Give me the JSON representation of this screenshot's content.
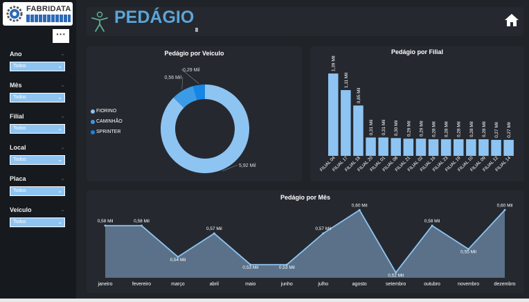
{
  "logo": {
    "text": "FABRIDATA"
  },
  "header": {
    "title": "PEDÁGIO"
  },
  "menu": {
    "more_label": "···"
  },
  "filters": [
    {
      "label": "Ano",
      "value": "Todos"
    },
    {
      "label": "Mês",
      "value": "Todos"
    },
    {
      "label": "Filial",
      "value": "Todos"
    },
    {
      "label": "Local",
      "value": "Todos"
    },
    {
      "label": "Placa",
      "value": "Todos"
    },
    {
      "label": "Veículo",
      "value": "Todos"
    }
  ],
  "colors": {
    "accent": "#5ba5d8",
    "light_blue": "#8ec4f2",
    "mid_blue": "#3b9be6",
    "dark_blue": "#1586e6",
    "card": "#25292f",
    "bg": "#202429"
  },
  "chart_data": [
    {
      "type": "pie",
      "title": "Pedágio por Veículo",
      "categories": [
        "FIORINO",
        "CAMINHÃO",
        "SPRINTER"
      ],
      "values": [
        5.92,
        0.56,
        0.29
      ],
      "data_labels": [
        "5,92 Mil",
        "0,56 Mil",
        "0,29 Mil"
      ],
      "colors": [
        "#8ec4f2",
        "#3b9be6",
        "#1586e6"
      ],
      "legend": "left"
    },
    {
      "type": "bar",
      "title": "Pedágio por Filial",
      "categories": [
        "FILIAL 04",
        "FILIAL 17",
        "FILIAL 18",
        "FILIAL 20",
        "FILIAL 01",
        "FILIAL 08",
        "FILIAL 21",
        "FILIAL 02",
        "FILIAL 16",
        "FILIAL 23",
        "FILIAL 19",
        "FILIAL 10",
        "FILIAL 09",
        "FILIAL 12",
        "FILIAL 14"
      ],
      "values": [
        1.39,
        1.11,
        0.85,
        0.31,
        0.31,
        0.3,
        0.29,
        0.29,
        0.28,
        0.28,
        0.28,
        0.28,
        0.28,
        0.27,
        0.27
      ],
      "data_labels": [
        "1,39 Mil",
        "1,11 Mil",
        "0,85 Mil",
        "0,31 Mil",
        "0,31 Mil",
        "0,30 Mil",
        "0,29 Mil",
        "0,29 Mil",
        "0,28 Mil",
        "0,28 Mil",
        "0,28 Mil",
        "0,28 Mil",
        "0,28 Mil",
        "0,27 Mil",
        "0,27 Mil"
      ],
      "color": "#8ec4f2",
      "ylim": [
        0,
        1.45
      ]
    },
    {
      "type": "area",
      "title": "Pedágio por Mês",
      "categories": [
        "janeiro",
        "fevereiro",
        "março",
        "abril",
        "maio",
        "junho",
        "julho",
        "agosto",
        "setembro",
        "outubro",
        "novembro",
        "dezembro"
      ],
      "values": [
        0.58,
        0.58,
        0.54,
        0.57,
        0.53,
        0.53,
        0.57,
        0.6,
        0.52,
        0.58,
        0.55,
        0.6
      ],
      "data_labels": [
        "0,58 Mil",
        "0,58 Mil",
        "0,54 Mil",
        "0,57 Mil",
        "0,53 Mil",
        "0,53 Mil",
        "0,57 Mil",
        "0,60 Mil",
        "0,52 Mil",
        "0,58 Mil",
        "0,55 Mil",
        "0,60 Mil"
      ],
      "color": "#8ec4f2",
      "ylim": [
        0.515,
        0.602
      ]
    }
  ]
}
